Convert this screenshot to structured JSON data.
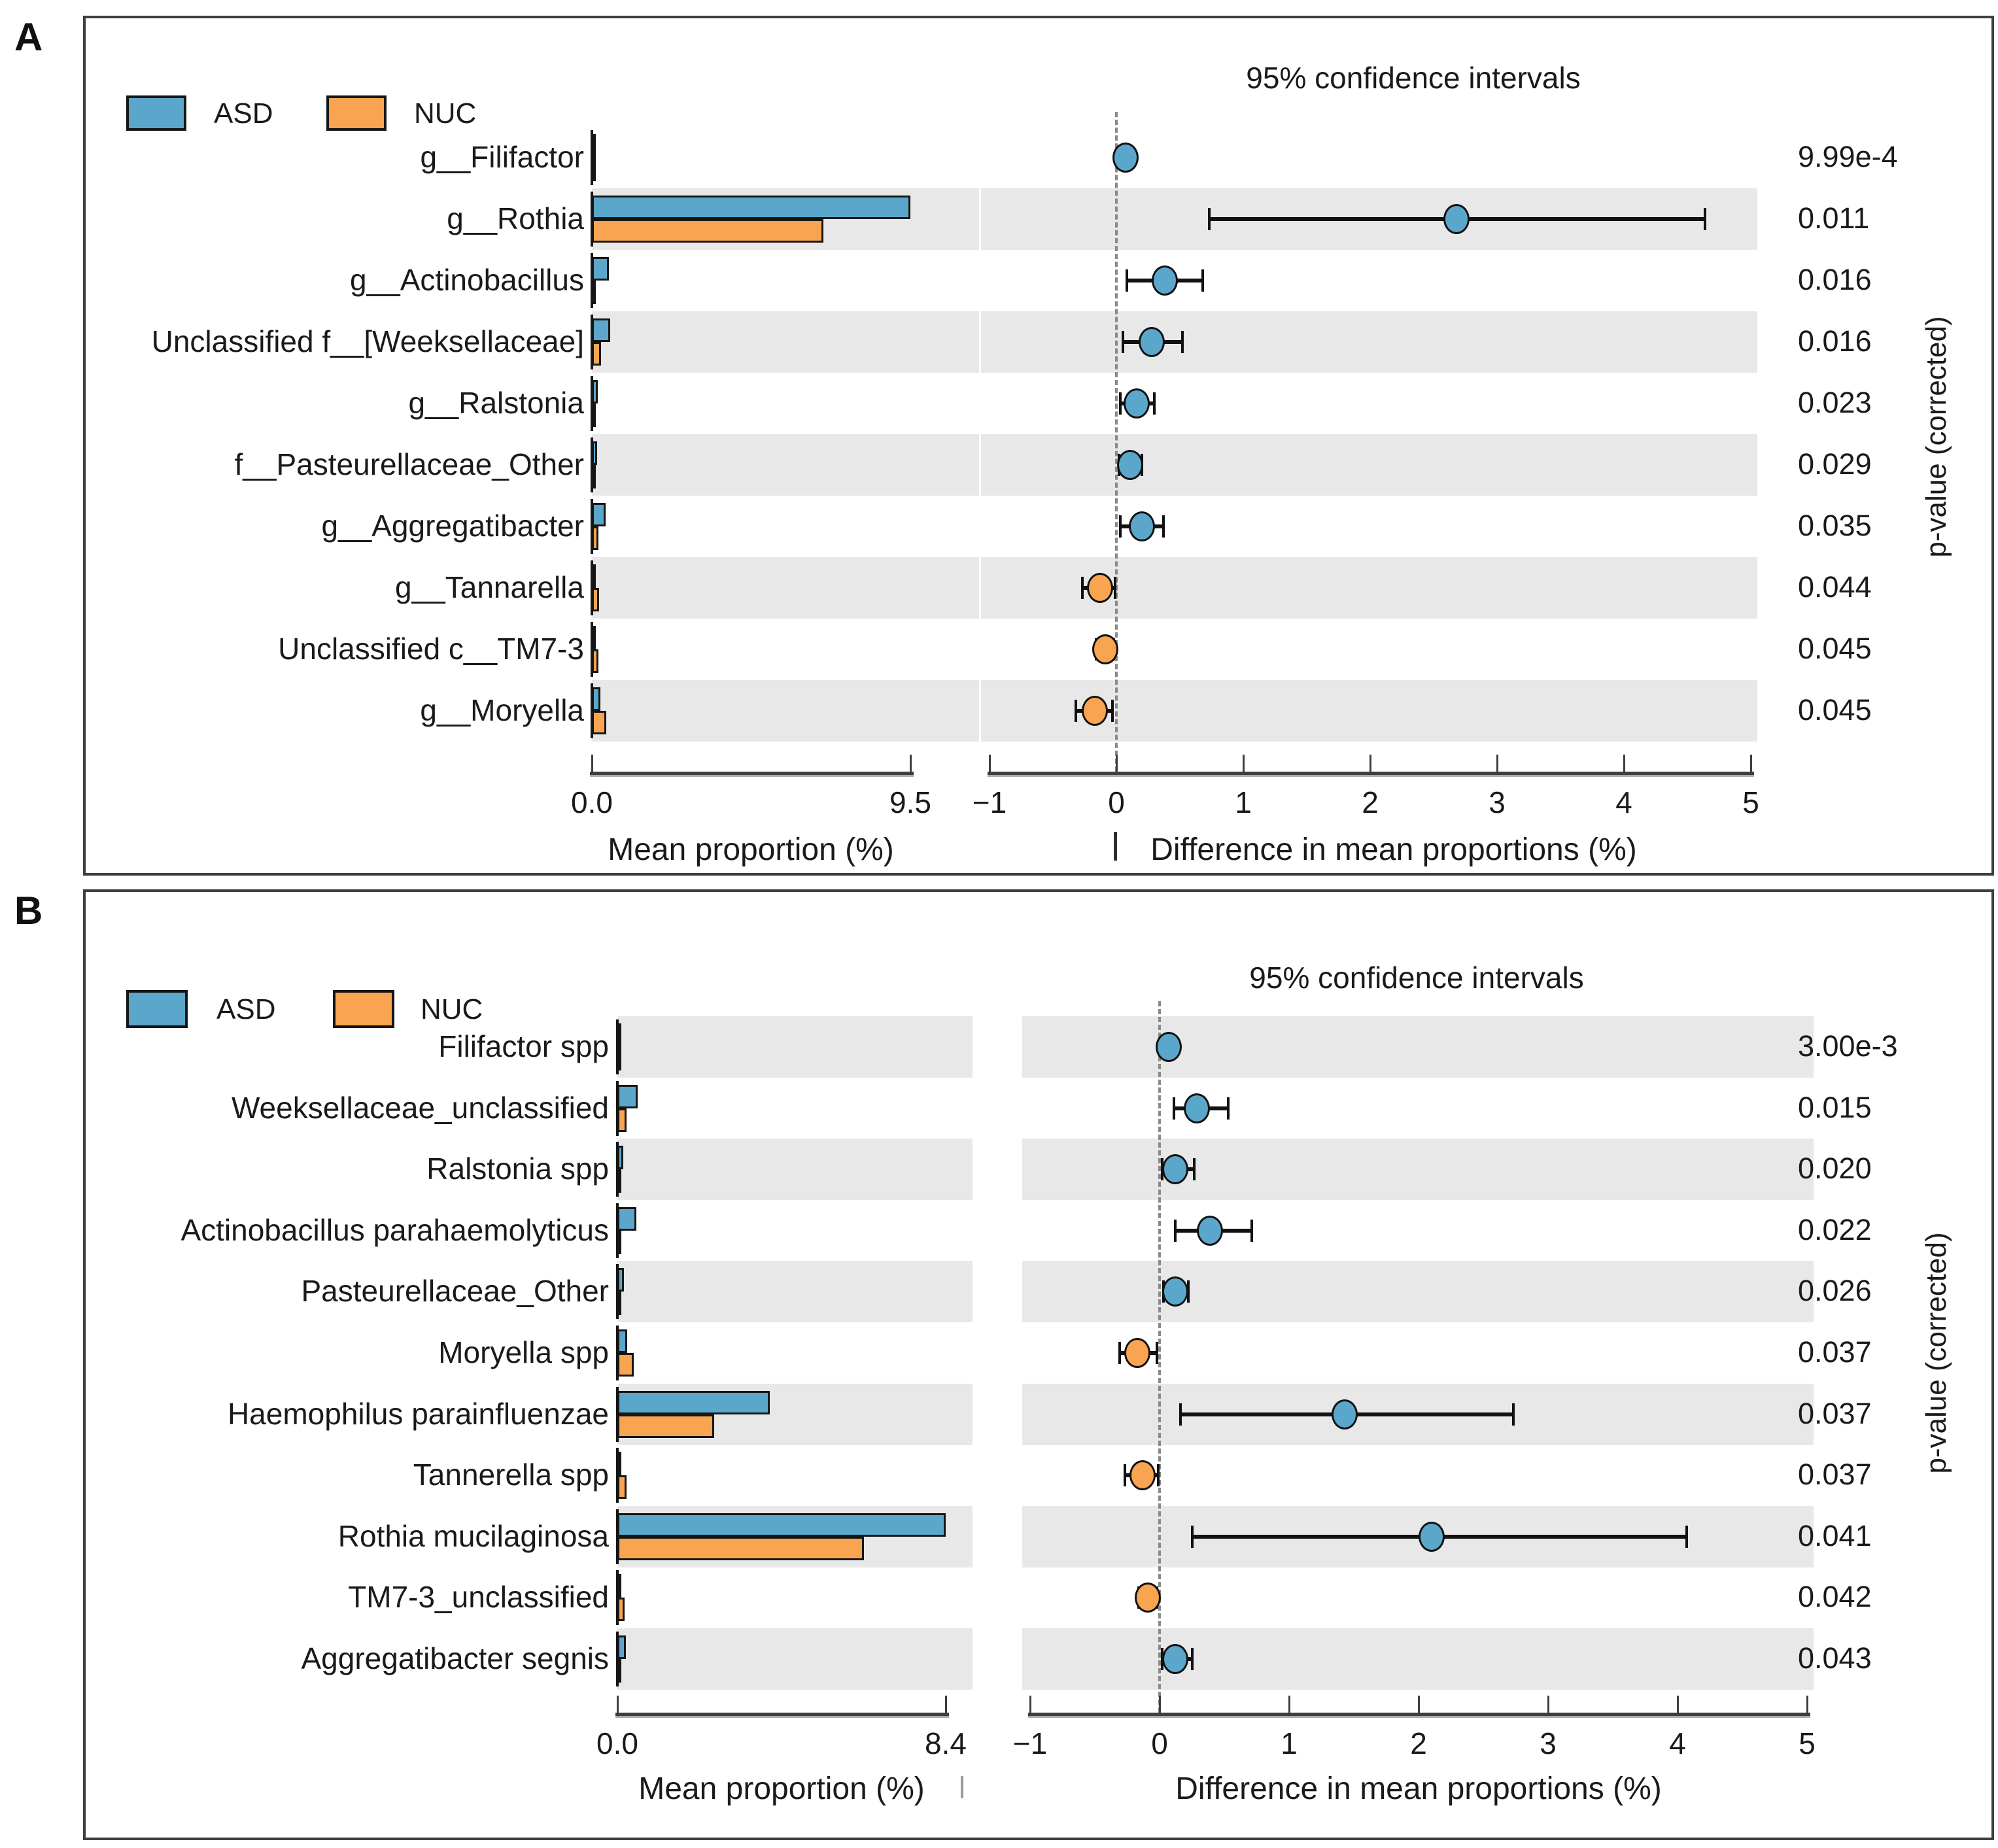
{
  "figure": {
    "kind": "STAMP extended error bar plot",
    "groups_compared": [
      "ASD",
      "NUC"
    ]
  },
  "colors": {
    "asd": "#5BA7CC",
    "nuc": "#F9A450",
    "band": "#E8E8E8",
    "axis": "#3E3E3E",
    "axis_shadow": "#ABABAB",
    "border": "#3F3F3F",
    "dash_line": "#8A8A8A",
    "error_bar": "#111111",
    "text": "#1A1A1A"
  },
  "chart_data": [
    {
      "type": "bar",
      "subtype": "extended_error_bar",
      "letter": "A",
      "legend": [
        {
          "label": "ASD",
          "color_key": "asd"
        },
        {
          "label": "NUC",
          "color_key": "nuc"
        }
      ],
      "ci_title": "95% confidence intervals",
      "pvalue_axis_label": "p-value (corrected)",
      "left_axis": {
        "title": "Mean proportion (%)",
        "min": 0,
        "max": 9.5,
        "ticks": [
          "0.0",
          "9.5"
        ]
      },
      "right_axis": {
        "title": "Difference in mean proportions (%)",
        "min": -1,
        "max": 5,
        "ticks": [
          "−1",
          "0",
          "1",
          "2",
          "3",
          "4",
          "5"
        ]
      },
      "rows": [
        {
          "label": "g__Filifactor",
          "asd": 0.07,
          "nuc": 0.01,
          "diff": 0.07,
          "ci": [
            0.02,
            0.12
          ],
          "dot": "asd",
          "p": "9.99e-4",
          "shaded": false
        },
        {
          "label": "g__Rothia",
          "asd": 9.5,
          "nuc": 6.9,
          "diff": 2.68,
          "ci": [
            0.73,
            4.64
          ],
          "dot": "asd",
          "p": "0.011",
          "shaded": true
        },
        {
          "label": "g__Actinobacillus",
          "asd": 0.5,
          "nuc": 0.1,
          "diff": 0.38,
          "ci": [
            0.08,
            0.68
          ],
          "dot": "asd",
          "p": "0.016",
          "shaded": false
        },
        {
          "label": "Unclassified f__[Weeksellaceae]",
          "asd": 0.55,
          "nuc": 0.27,
          "diff": 0.28,
          "ci": [
            0.05,
            0.52
          ],
          "dot": "asd",
          "p": "0.016",
          "shaded": true
        },
        {
          "label": "g__Ralstonia",
          "asd": 0.18,
          "nuc": 0.03,
          "diff": 0.16,
          "ci": [
            0.03,
            0.3
          ],
          "dot": "asd",
          "p": "0.023",
          "shaded": false
        },
        {
          "label": "f__Pasteurellaceae_Other",
          "asd": 0.16,
          "nuc": 0.05,
          "diff": 0.11,
          "ci": [
            0.02,
            0.2
          ],
          "dot": "asd",
          "p": "0.029",
          "shaded": true
        },
        {
          "label": "g__Aggregatibacter",
          "asd": 0.4,
          "nuc": 0.2,
          "diff": 0.2,
          "ci": [
            0.03,
            0.37
          ],
          "dot": "asd",
          "p": "0.035",
          "shaded": false
        },
        {
          "label": "g__Tannarella",
          "asd": 0.08,
          "nuc": 0.21,
          "diff": -0.13,
          "ci": [
            -0.27,
            -0.01
          ],
          "dot": "nuc",
          "p": "0.044",
          "shaded": true
        },
        {
          "label": "Unclassified c__TM7-3",
          "asd": 0.1,
          "nuc": 0.19,
          "diff": -0.09,
          "ci": [
            -0.16,
            -0.02
          ],
          "dot": "nuc",
          "p": "0.045",
          "shaded": false
        },
        {
          "label": "g__Moryella",
          "asd": 0.25,
          "nuc": 0.42,
          "diff": -0.17,
          "ci": [
            -0.32,
            -0.03
          ],
          "dot": "nuc",
          "p": "0.045",
          "shaded": true
        }
      ]
    },
    {
      "type": "bar",
      "subtype": "extended_error_bar",
      "letter": "B",
      "legend": [
        {
          "label": "ASD",
          "color_key": "asd"
        },
        {
          "label": "NUC",
          "color_key": "nuc"
        }
      ],
      "ci_title": "95% confidence intervals",
      "pvalue_axis_label": "p-value (corrected)",
      "left_axis": {
        "title": "Mean proportion (%)",
        "min": 0,
        "max": 8.4,
        "ticks": [
          "0.0",
          "8.4"
        ]
      },
      "right_axis": {
        "title": "Difference in mean proportions (%)",
        "min": -1,
        "max": 5,
        "ticks": [
          "−1",
          "0",
          "1",
          "2",
          "3",
          "4",
          "5"
        ]
      },
      "rows": [
        {
          "label": "Filifactor spp",
          "asd": 0.08,
          "nuc": 0.01,
          "diff": 0.07,
          "ci": [
            0.02,
            0.13
          ],
          "dot": "asd",
          "p": "3.00e-3",
          "shaded": true
        },
        {
          "label": "Weeksellaceae_unclassified",
          "asd": 0.52,
          "nuc": 0.23,
          "diff": 0.29,
          "ci": [
            0.11,
            0.53
          ],
          "dot": "asd",
          "p": "0.015",
          "shaded": false
        },
        {
          "label": "Ralstonia spp",
          "asd": 0.15,
          "nuc": 0.03,
          "diff": 0.12,
          "ci": [
            0.02,
            0.27
          ],
          "dot": "asd",
          "p": "0.020",
          "shaded": true
        },
        {
          "label": "Actinobacillus parahaemolyticus",
          "asd": 0.48,
          "nuc": 0.09,
          "diff": 0.39,
          "ci": [
            0.12,
            0.71
          ],
          "dot": "asd",
          "p": "0.022",
          "shaded": false
        },
        {
          "label": "Pasteurellaceae_Other",
          "asd": 0.17,
          "nuc": 0.05,
          "diff": 0.12,
          "ci": [
            0.03,
            0.22
          ],
          "dot": "asd",
          "p": "0.026",
          "shaded": true
        },
        {
          "label": "Moryella spp",
          "asd": 0.25,
          "nuc": 0.42,
          "diff": -0.17,
          "ci": [
            -0.31,
            -0.02
          ],
          "dot": "nuc",
          "p": "0.037",
          "shaded": false
        },
        {
          "label": "Haemophilus parainfluenzae",
          "asd": 3.9,
          "nuc": 2.47,
          "diff": 1.43,
          "ci": [
            0.16,
            2.73
          ],
          "dot": "asd",
          "p": "0.037",
          "shaded": true
        },
        {
          "label": "Tannerella spp",
          "asd": 0.1,
          "nuc": 0.23,
          "diff": -0.13,
          "ci": [
            -0.27,
            -0.01
          ],
          "dot": "nuc",
          "p": "0.037",
          "shaded": false
        },
        {
          "label": "Rothia mucilaginosa",
          "asd": 8.4,
          "nuc": 6.3,
          "diff": 2.1,
          "ci": [
            0.25,
            4.07
          ],
          "dot": "asd",
          "p": "0.041",
          "shaded": true
        },
        {
          "label": "TM7-3_unclassified",
          "asd": 0.1,
          "nuc": 0.19,
          "diff": -0.09,
          "ci": [
            -0.16,
            -0.02
          ],
          "dot": "nuc",
          "p": "0.042",
          "shaded": false
        },
        {
          "label": "Aggregatibacter segnis",
          "asd": 0.22,
          "nuc": 0.1,
          "diff": 0.12,
          "ci": [
            0.02,
            0.25
          ],
          "dot": "asd",
          "p": "0.043",
          "shaded": true
        }
      ]
    }
  ]
}
